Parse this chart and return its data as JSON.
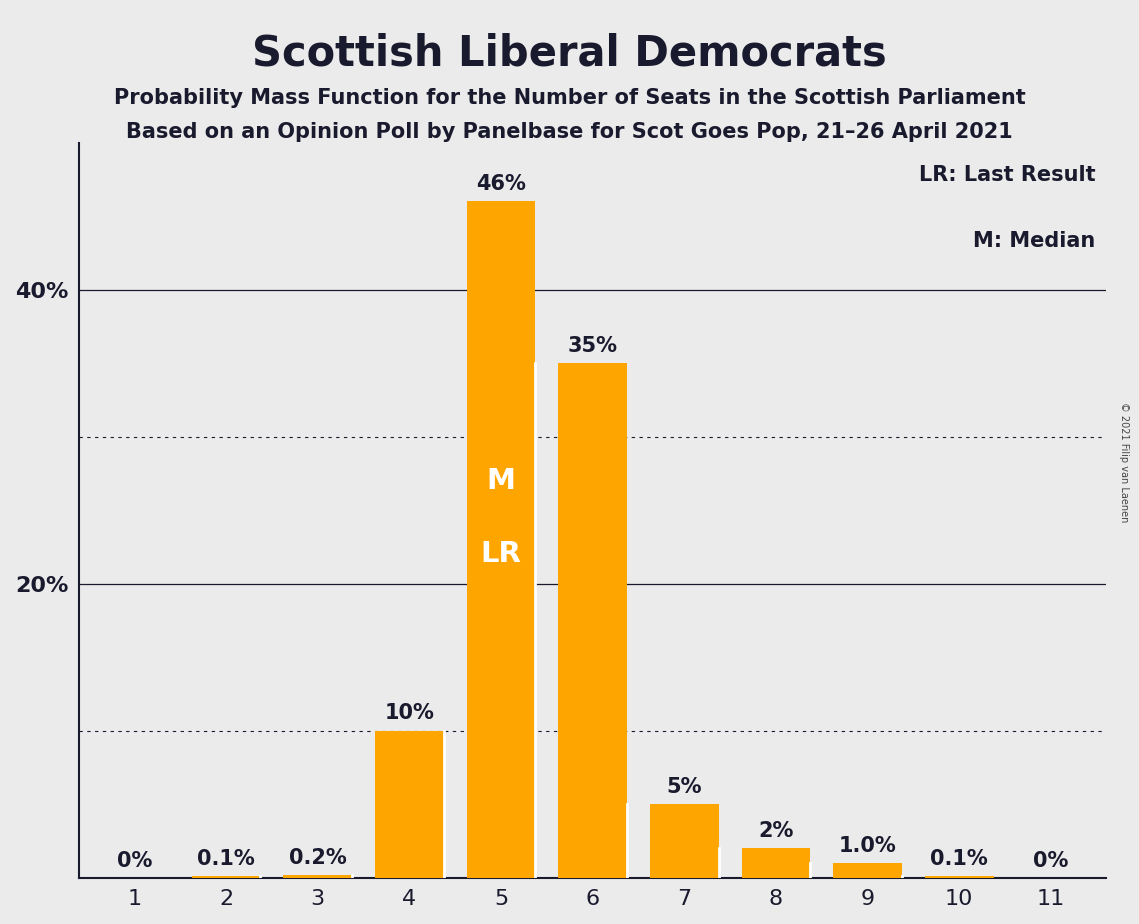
{
  "title": "Scottish Liberal Democrats",
  "subtitle1": "Probability Mass Function for the Number of Seats in the Scottish Parliament",
  "subtitle2": "Based on an Opinion Poll by Panelbase for Scot Goes Pop, 21–26 April 2021",
  "copyright": "© 2021 Filip van Laenen",
  "categories": [
    1,
    2,
    3,
    4,
    5,
    6,
    7,
    8,
    9,
    10,
    11
  ],
  "values": [
    0.0,
    0.1,
    0.2,
    10.0,
    46.0,
    35.0,
    5.0,
    2.0,
    1.0,
    0.1,
    0.0
  ],
  "bar_color": "#FFA500",
  "background_color": "#EBEBEB",
  "label_texts": [
    "0%",
    "0.1%",
    "0.2%",
    "10%",
    "46%",
    "35%",
    "5%",
    "2%",
    "1.0%",
    "0.1%",
    "0%"
  ],
  "median_bar": 5,
  "last_result_bar": 5,
  "legend_line1": "LR: Last Result",
  "legend_line2": "M: Median",
  "ylim": [
    0,
    50
  ],
  "solid_hlines": [
    20,
    40
  ],
  "dotted_hlines": [
    10,
    30
  ],
  "ytick_vals": [
    20,
    40
  ],
  "ytick_labels": [
    "20%",
    "40%"
  ],
  "title_fontsize": 30,
  "subtitle_fontsize": 15,
  "bar_label_fontsize": 15,
  "white_label_fontsize": 21,
  "legend_fontsize": 15,
  "xtick_fontsize": 16,
  "ytick_fontsize": 16,
  "divider_color": "#FFFFFF",
  "spine_color": "#1a1a2e",
  "label_color": "#1a1a2e"
}
